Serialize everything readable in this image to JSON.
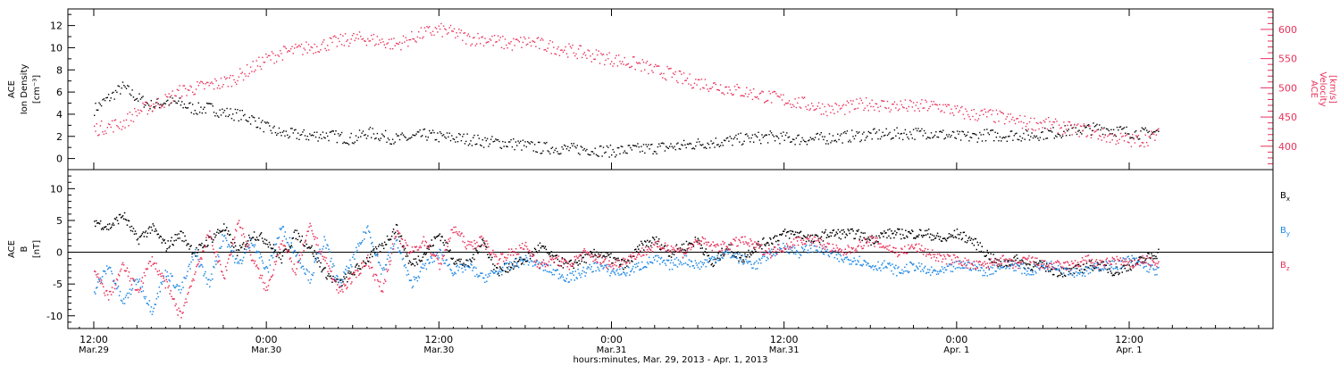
{
  "chart_data": [
    {
      "panel": "top",
      "type": "scatter",
      "left_axis": {
        "label_lines": [
          "ACE",
          "Ion Density",
          "[cm⁻³]"
        ],
        "ylim": [
          -1,
          13.5
        ],
        "ticks": [
          0,
          2,
          4,
          6,
          8,
          10,
          12
        ]
      },
      "right_axis": {
        "label_lines": [
          "ACE",
          "Velocity",
          "[km/s]"
        ],
        "ylim": [
          360,
          635
        ],
        "ticks": [
          400,
          450,
          500,
          550,
          600
        ],
        "color": "#e8315a"
      },
      "series": [
        {
          "key": "density",
          "axis": "left",
          "color": "#000000",
          "x": [
            0,
            1,
            2,
            3,
            4,
            5,
            6,
            7,
            8,
            9,
            10,
            11,
            12,
            13,
            14,
            15,
            16,
            17,
            18,
            19,
            20,
            21,
            22,
            23,
            24,
            25,
            26,
            27,
            28,
            29,
            30,
            31,
            32,
            33,
            34,
            35,
            36,
            37,
            38,
            39,
            40,
            41,
            42,
            43,
            44,
            45,
            46,
            47,
            48,
            49,
            50,
            51,
            52,
            53,
            54,
            55,
            56,
            57,
            58,
            59,
            60,
            61,
            62,
            63,
            64,
            65,
            66,
            67,
            68,
            69,
            70,
            71,
            72,
            73,
            74
          ],
          "values": [
            4.5,
            5.5,
            6.5,
            5.5,
            4.8,
            5.2,
            5.0,
            4.5,
            4.6,
            4.2,
            4.0,
            3.6,
            2.8,
            2.3,
            2.2,
            2.1,
            2.2,
            2.0,
            1.8,
            2.4,
            2.1,
            1.8,
            1.9,
            2.2,
            2.0,
            1.9,
            1.8,
            1.6,
            1.5,
            1.4,
            1.2,
            1.0,
            1.0,
            0.9,
            0.9,
            0.8,
            0.7,
            0.8,
            0.9,
            1.0,
            1.1,
            1.2,
            1.4,
            1.5,
            1.6,
            1.8,
            1.9,
            2.0,
            1.9,
            1.8,
            1.8,
            1.9,
            2.0,
            2.1,
            2.2,
            2.2,
            2.3,
            2.3,
            2.4,
            2.2,
            2.0,
            2.0,
            2.2,
            2.1,
            2.2,
            2.1,
            2.3,
            2.4,
            2.6,
            2.7,
            2.8,
            2.6,
            2.4,
            2.3,
            2.5
          ]
        },
        {
          "key": "velocity",
          "axis": "right",
          "color": "#e8315a",
          "x": [
            0,
            1,
            2,
            3,
            4,
            5,
            6,
            7,
            8,
            9,
            10,
            11,
            12,
            13,
            14,
            15,
            16,
            17,
            18,
            19,
            20,
            21,
            22,
            23,
            24,
            25,
            26,
            27,
            28,
            29,
            30,
            31,
            32,
            33,
            34,
            35,
            36,
            37,
            38,
            39,
            40,
            41,
            42,
            43,
            44,
            45,
            46,
            47,
            48,
            49,
            50,
            51,
            52,
            53,
            54,
            55,
            56,
            57,
            58,
            59,
            60,
            61,
            62,
            63,
            64,
            65,
            66,
            67,
            68,
            69,
            70,
            71,
            72,
            73,
            74
          ],
          "values": [
            430,
            435,
            440,
            460,
            470,
            480,
            495,
            500,
            505,
            510,
            520,
            535,
            550,
            560,
            565,
            570,
            575,
            580,
            585,
            585,
            580,
            575,
            585,
            595,
            600,
            595,
            585,
            585,
            580,
            575,
            580,
            575,
            570,
            565,
            560,
            555,
            550,
            545,
            540,
            530,
            525,
            515,
            510,
            505,
            500,
            495,
            490,
            485,
            480,
            475,
            470,
            465,
            465,
            470,
            475,
            470,
            470,
            468,
            470,
            468,
            460,
            455,
            455,
            450,
            445,
            440,
            440,
            435,
            430,
            428,
            420,
            415,
            410,
            412,
            420
          ]
        }
      ]
    },
    {
      "panel": "bottom",
      "type": "line",
      "axis": {
        "label_lines": [
          "ACE",
          "B",
          "[nT]"
        ],
        "ylim": [
          -12,
          13
        ],
        "ticks": [
          -10,
          -5,
          0,
          5,
          10
        ]
      },
      "legend": [
        {
          "text": "B",
          "sub": "x",
          "color": "#000000"
        },
        {
          "text": "B",
          "sub": "y",
          "color": "#1e88e5"
        },
        {
          "text": "B",
          "sub": "z",
          "color": "#e8315a"
        }
      ],
      "series": [
        {
          "key": "bx",
          "color": "#000000",
          "x": [
            0,
            1,
            2,
            3,
            4,
            5,
            6,
            7,
            8,
            9,
            10,
            11,
            12,
            13,
            14,
            15,
            16,
            17,
            18,
            19,
            20,
            21,
            22,
            23,
            24,
            25,
            26,
            27,
            28,
            29,
            30,
            31,
            32,
            33,
            34,
            35,
            36,
            37,
            38,
            39,
            40,
            41,
            42,
            43,
            44,
            45,
            46,
            47,
            48,
            49,
            50,
            51,
            52,
            53,
            54,
            55,
            56,
            57,
            58,
            59,
            60,
            61,
            62,
            63,
            64,
            65,
            66,
            67,
            68,
            69,
            70,
            71,
            72,
            73,
            74
          ],
          "values": [
            5,
            4,
            6,
            2,
            4,
            1,
            3,
            0,
            2,
            4,
            0,
            3,
            2,
            -1,
            3,
            1,
            -3,
            -5,
            -3,
            -1,
            1,
            4,
            -2,
            0,
            3,
            -1,
            -2,
            2,
            -3,
            -2,
            -1,
            1,
            -1,
            -2,
            -1,
            0,
            -1,
            -2,
            1,
            2,
            0,
            1,
            2,
            -2,
            1,
            -1,
            1,
            2,
            3,
            3,
            2,
            3,
            3,
            3,
            2,
            3,
            3,
            3,
            3,
            2,
            3,
            2,
            0,
            -2,
            -1,
            -2,
            -2,
            -3,
            -3,
            -2,
            -2,
            -3,
            -2,
            -1,
            0
          ]
        },
        {
          "key": "by",
          "color": "#1e88e5",
          "x": [
            0,
            1,
            2,
            3,
            4,
            5,
            6,
            7,
            8,
            9,
            10,
            11,
            12,
            13,
            14,
            15,
            16,
            17,
            18,
            19,
            20,
            21,
            22,
            23,
            24,
            25,
            26,
            27,
            28,
            29,
            30,
            31,
            32,
            33,
            34,
            35,
            36,
            37,
            38,
            39,
            40,
            41,
            42,
            43,
            44,
            45,
            46,
            47,
            48,
            49,
            50,
            51,
            52,
            53,
            54,
            55,
            56,
            57,
            58,
            59,
            60,
            61,
            62,
            63,
            64,
            65,
            66,
            67,
            68,
            69,
            70,
            71,
            72,
            73,
            74
          ],
          "values": [
            -6,
            -2,
            -8,
            -4,
            -9,
            -3,
            -6,
            0,
            -5,
            3,
            -2,
            2,
            -3,
            4,
            0,
            -4,
            2,
            -5,
            -1,
            4,
            -3,
            2,
            -5,
            -2,
            0,
            -3,
            -2,
            -4,
            -3,
            -2,
            -1,
            -2,
            -3,
            -4,
            -3,
            -2,
            -3,
            -3,
            -2,
            -1,
            -2,
            -1,
            -2,
            -1,
            0,
            -1,
            -2,
            0,
            1,
            0,
            1,
            0,
            -1,
            -1,
            -2,
            -2,
            -3,
            -2,
            -3,
            -3,
            -2,
            -2,
            -3,
            -2,
            -2,
            -3,
            -2,
            -2,
            -3,
            -3,
            -2,
            -2,
            -1,
            -2,
            -3
          ]
        },
        {
          "key": "bz",
          "color": "#e8315a",
          "x": [
            0,
            1,
            2,
            3,
            4,
            5,
            6,
            7,
            8,
            9,
            10,
            11,
            12,
            13,
            14,
            15,
            16,
            17,
            18,
            19,
            20,
            21,
            22,
            23,
            24,
            25,
            26,
            27,
            28,
            29,
            30,
            31,
            32,
            33,
            34,
            35,
            36,
            37,
            38,
            39,
            40,
            41,
            42,
            43,
            44,
            45,
            46,
            47,
            48,
            49,
            50,
            51,
            52,
            53,
            54,
            55,
            56,
            57,
            58,
            59,
            60,
            61,
            62,
            63,
            64,
            65,
            66,
            67,
            68,
            69,
            70,
            71,
            72,
            73,
            74
          ],
          "values": [
            -3,
            -7,
            -2,
            -6,
            -1,
            -5,
            -10,
            -3,
            3,
            -4,
            5,
            -1,
            -6,
            2,
            -3,
            4,
            -1,
            -6,
            -4,
            -1,
            -6,
            3,
            0,
            2,
            -2,
            4,
            1,
            2,
            -1,
            0,
            1,
            -2,
            -1,
            -2,
            0,
            -1,
            -2,
            -1,
            0,
            1,
            1,
            0,
            2,
            1,
            1,
            2,
            1,
            0,
            1,
            2,
            2,
            1,
            0,
            1,
            2,
            1,
            0,
            1,
            0,
            -1,
            -1,
            -2,
            -2,
            -1,
            -2,
            -1,
            -2,
            -2,
            -2,
            -1,
            -2,
            -1,
            -2,
            -1,
            -2
          ]
        }
      ],
      "x_axis": {
        "unit": "hours",
        "xlim": [
          -1.8,
          82
        ],
        "tick_positions": [
          0,
          12,
          24,
          36,
          48,
          60,
          72,
          84
        ],
        "tick_labels": [
          {
            "time": "12:00",
            "date": "Mar.29"
          },
          {
            "time": "0:00",
            "date": "Mar.30"
          },
          {
            "time": "12:00",
            "date": "Mar.30"
          },
          {
            "time": "0:00",
            "date": "Mar.31"
          },
          {
            "time": "12:00",
            "date": "Mar.31"
          },
          {
            "time": "0:00",
            "date": "Apr. 1"
          },
          {
            "time": "12:00",
            "date": "Apr. 1"
          }
        ],
        "title": "hours:minutes, Mar. 29, 2013 - Apr.  1, 2013"
      }
    }
  ]
}
